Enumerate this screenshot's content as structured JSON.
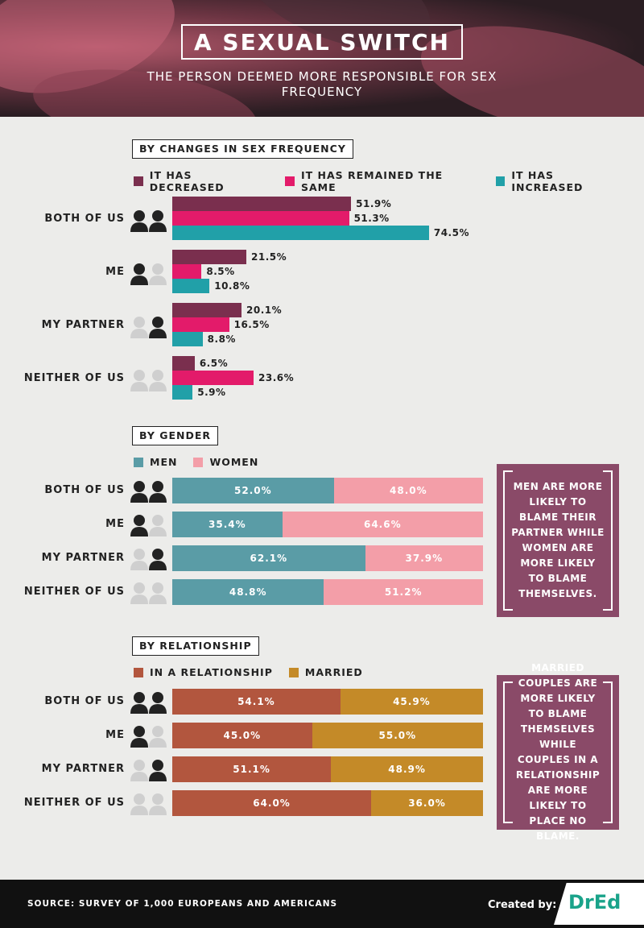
{
  "title": "A SEXUAL SWITCH",
  "subtitle": "THE PERSON DEEMED MORE RESPONSIBLE FOR SEX FREQUENCY",
  "row_labels": [
    "BOTH OF US",
    "ME",
    "MY PARTNER",
    "NEITHER OF US"
  ],
  "people_icons": [
    "both-highlighted",
    "left-highlighted",
    "right-highlighted",
    "none-highlighted"
  ],
  "colors": {
    "decreased": "#7a2f4e",
    "same": "#e31b6a",
    "increased": "#21a0a8",
    "men": "#5a9ca6",
    "women": "#f39ea8",
    "relationship": "#b2563e",
    "married": "#c48a28",
    "note_bg": "#8a4a68"
  },
  "chart_data": [
    {
      "type": "bar",
      "section_label": "BY CHANGES IN SEX FREQUENCY",
      "categories": [
        "BOTH OF US",
        "ME",
        "MY PARTNER",
        "NEITHER OF US"
      ],
      "series": [
        {
          "name": "IT HAS DECREASED",
          "values": [
            51.9,
            21.5,
            20.1,
            6.5
          ]
        },
        {
          "name": "IT HAS REMAINED THE SAME",
          "values": [
            51.3,
            8.5,
            16.5,
            23.6
          ]
        },
        {
          "name": "IT HAS INCREASED",
          "values": [
            74.5,
            10.8,
            8.8,
            5.9
          ]
        }
      ],
      "value_labels": [
        [
          "51.9%",
          "21.5%",
          "20.1%",
          "6.5%"
        ],
        [
          "51.3%",
          "8.5%",
          "16.5%",
          "23.6%"
        ],
        [
          "74.5%",
          "10.8%",
          "8.8%",
          "5.9%"
        ]
      ],
      "xlim": [
        0,
        100
      ],
      "legend": "top"
    },
    {
      "type": "bar",
      "stacked": true,
      "section_label": "BY GENDER",
      "categories": [
        "BOTH OF US",
        "ME",
        "MY PARTNER",
        "NEITHER OF US"
      ],
      "series": [
        {
          "name": "MEN",
          "values": [
            52.0,
            35.4,
            62.1,
            48.8
          ]
        },
        {
          "name": "WOMEN",
          "values": [
            48.0,
            64.6,
            37.9,
            51.2
          ]
        }
      ],
      "value_labels": [
        [
          "52.0%",
          "35.4%",
          "62.1%",
          "48.8%"
        ],
        [
          "48.0%",
          "64.6%",
          "37.9%",
          "51.2%"
        ]
      ],
      "xlim": [
        0,
        100
      ],
      "legend": "top",
      "annotation": "MEN ARE MORE LIKELY TO BLAME THEIR PARTNER WHILE WOMEN ARE MORE LIKELY TO BLAME THEMSELVES."
    },
    {
      "type": "bar",
      "stacked": true,
      "section_label": "BY RELATIONSHIP",
      "categories": [
        "BOTH OF US",
        "ME",
        "MY PARTNER",
        "NEITHER OF US"
      ],
      "series": [
        {
          "name": "IN A RELATIONSHIP",
          "values": [
            54.1,
            45.0,
            51.1,
            64.0
          ]
        },
        {
          "name": "MARRIED",
          "values": [
            45.9,
            55.0,
            48.9,
            36.0
          ]
        }
      ],
      "value_labels": [
        [
          "54.1%",
          "45.0%",
          "51.1%",
          "64.0%"
        ],
        [
          "45.9%",
          "55.0%",
          "48.9%",
          "36.0%"
        ]
      ],
      "xlim": [
        0,
        100
      ],
      "legend": "top",
      "annotation": "MARRIED COUPLES ARE MORE LIKELY TO BLAME THEMSELVES WHILE COUPLES IN A RELATIONSHIP ARE MORE LIKELY TO PLACE NO BLAME."
    }
  ],
  "footer": {
    "source": "SOURCE: SURVEY OF 1,000 EUROPEANS AND AMERICANS",
    "created_by": "Created by:",
    "logo": "DrEd"
  }
}
